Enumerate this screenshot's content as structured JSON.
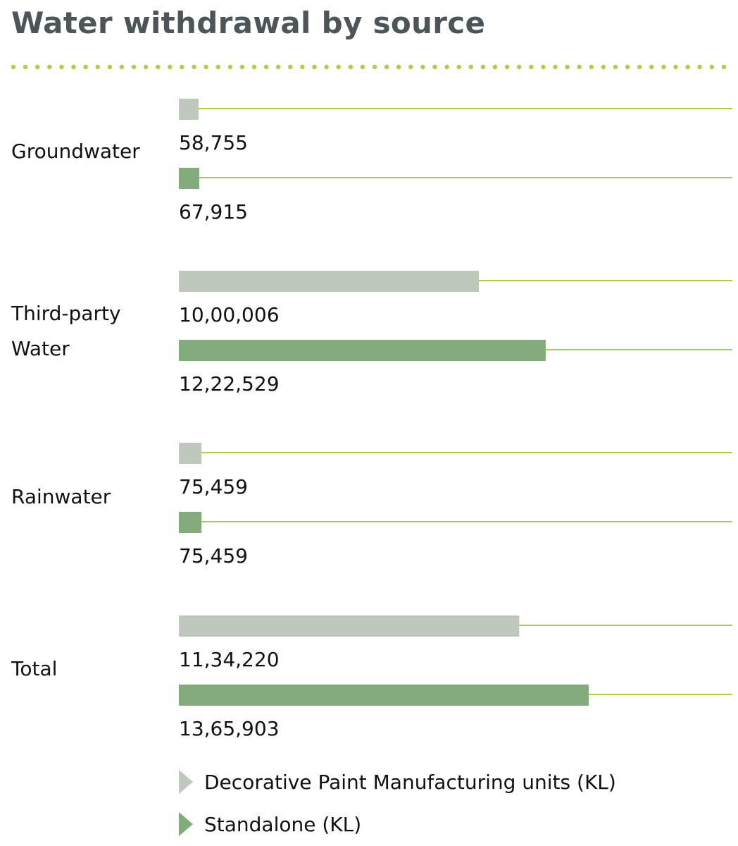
{
  "title": "Water withdrawal by source",
  "colors": {
    "series0": "#bec8bc",
    "series1": "#84ab7b",
    "line": "#a8cf45",
    "title": "#4b555a"
  },
  "chart_data": {
    "type": "bar",
    "orientation": "horizontal",
    "title": "Water withdrawal by source",
    "categories": [
      "Groundwater",
      "Third-party Water",
      "Rainwater",
      "Total"
    ],
    "series": [
      {
        "name": "Decorative Paint Manufacturing units (KL)",
        "values": [
          58755,
          1000006,
          75459,
          1134220
        ],
        "labels": [
          "58,755",
          "10,00,006",
          "75,459",
          "11,34,220"
        ]
      },
      {
        "name": "Standalone (KL)",
        "values": [
          67915,
          1222529,
          75459,
          1365903
        ],
        "labels": [
          "67,915",
          "12,22,529",
          "75,459",
          "13,65,903"
        ]
      }
    ],
    "legend": "bottom-left"
  }
}
